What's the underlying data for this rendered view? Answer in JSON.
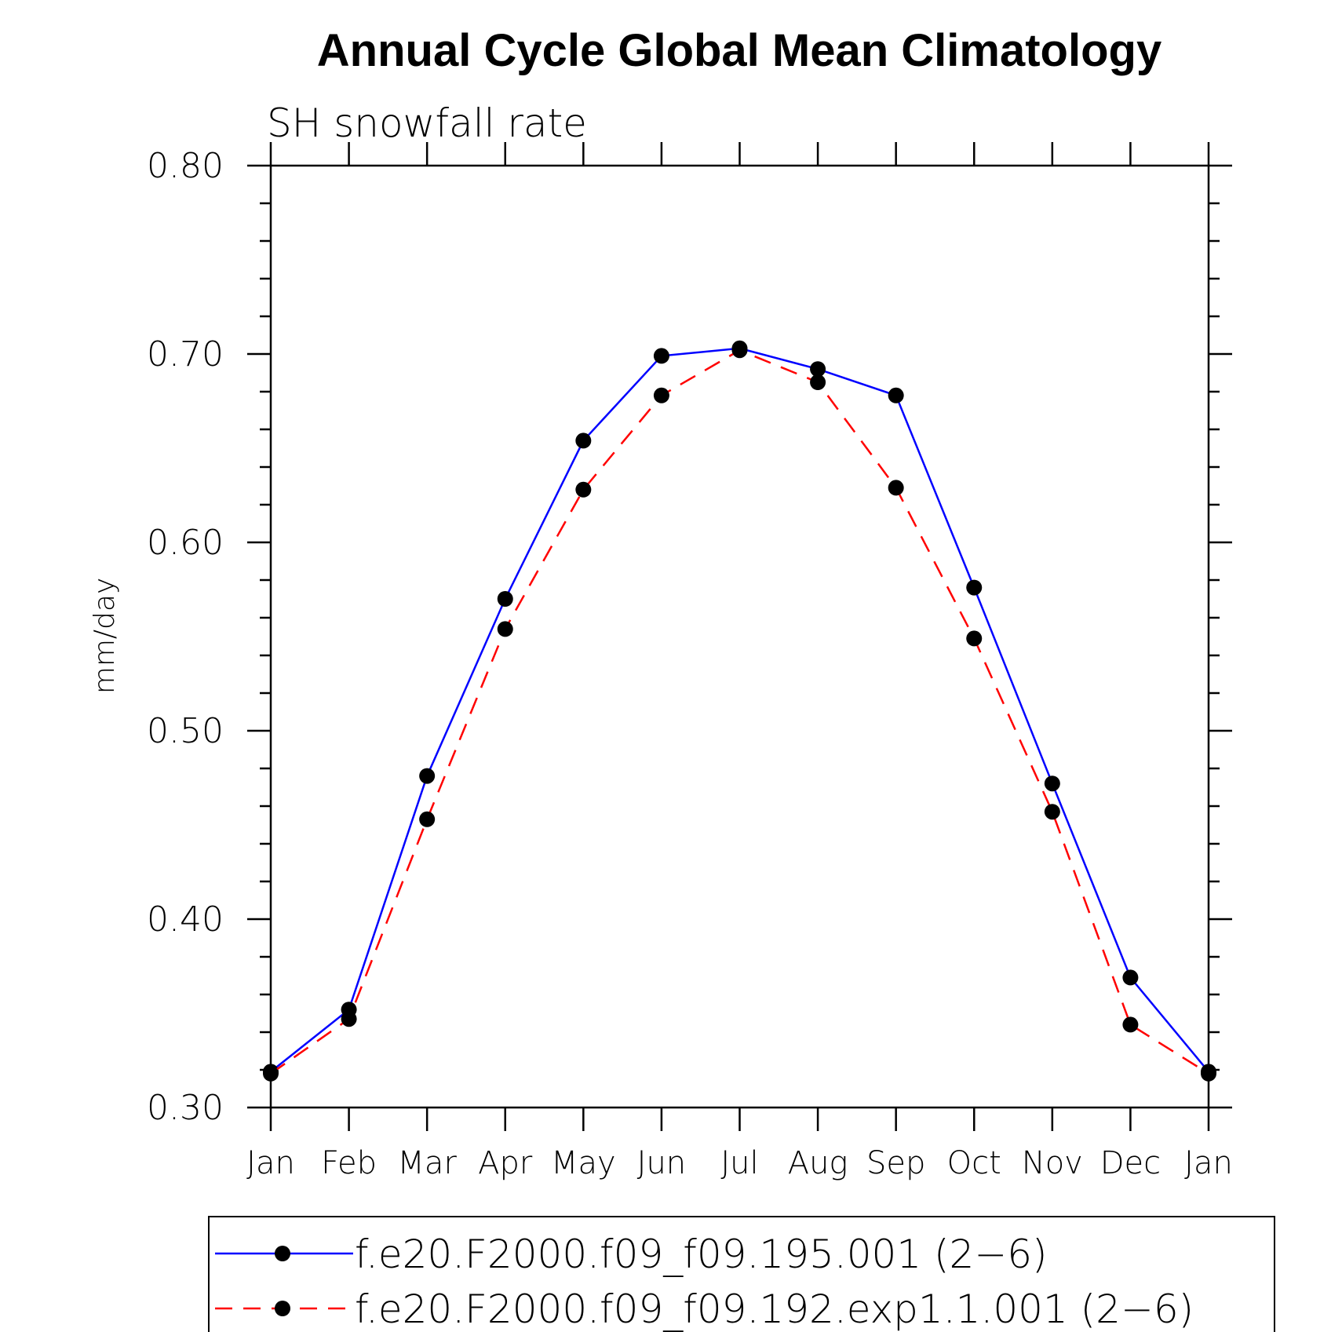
{
  "chart_data": {
    "type": "line",
    "title": "Annual Cycle Global Mean Climatology",
    "subtitle": "SH snowfall rate",
    "xlabel": "",
    "ylabel": "mm/day",
    "ylim": [
      0.3,
      0.8
    ],
    "yticks": [
      "0.30",
      "0.40",
      "0.50",
      "0.60",
      "0.70",
      "0.80"
    ],
    "categories": [
      "Jan",
      "Feb",
      "Mar",
      "Apr",
      "May",
      "Jun",
      "Jul",
      "Aug",
      "Sep",
      "Oct",
      "Nov",
      "Dec",
      "Jan"
    ],
    "series": [
      {
        "name": "f.e20.F2000.f09_f09.195.001 (2−6)",
        "color": "#0000ff",
        "dash": "solid",
        "values": [
          0.319,
          0.352,
          0.476,
          0.57,
          0.654,
          0.699,
          0.703,
          0.692,
          0.678,
          0.576,
          0.472,
          0.369,
          0.319
        ]
      },
      {
        "name": "f.e20.F2000.f09_f09.192.exp1.1.001 (2−6)",
        "color": "#ff0000",
        "dash": "dashed",
        "values": [
          0.318,
          0.347,
          0.453,
          0.554,
          0.628,
          0.678,
          0.702,
          0.685,
          0.629,
          0.549,
          0.457,
          0.344,
          0.318
        ]
      }
    ],
    "legend": "bottom"
  }
}
